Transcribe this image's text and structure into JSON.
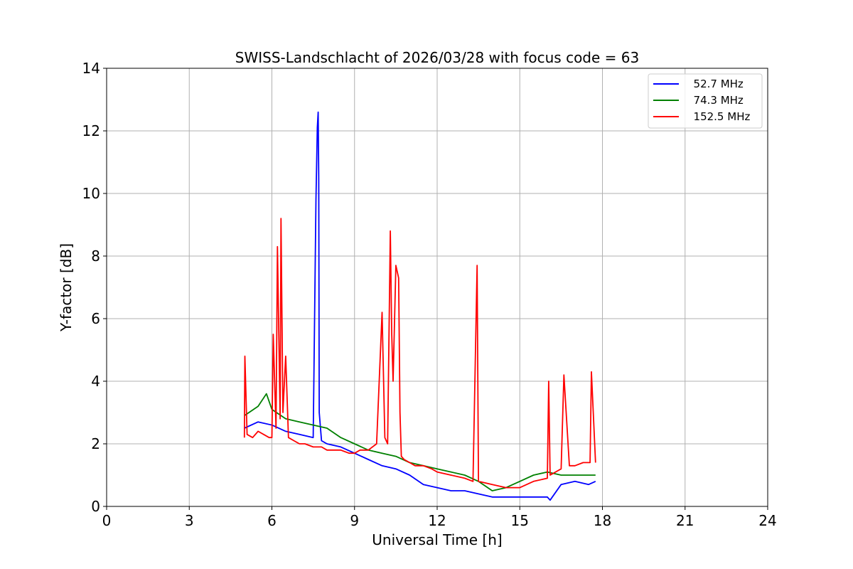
{
  "chart_data": {
    "type": "line",
    "title": "SWISS-Landschlacht of 2026/03/28 with focus code = 63",
    "xlabel": "Universal Time [h]",
    "ylabel": "Y-factor [dB]",
    "xlim": [
      0,
      24
    ],
    "ylim": [
      0,
      14
    ],
    "xticks": [
      0,
      3,
      6,
      9,
      12,
      15,
      18,
      21,
      24
    ],
    "yticks": [
      0,
      2,
      4,
      6,
      8,
      10,
      12,
      14
    ],
    "grid": true,
    "legend_position": "top-right",
    "series": [
      {
        "name": "52.7 MHz",
        "label": "  52.7 MHz",
        "color": "#0000ff",
        "x": [
          5.0,
          5.5,
          6.0,
          6.5,
          7.0,
          7.5,
          7.6,
          7.65,
          7.68,
          7.7,
          7.72,
          7.8,
          8.0,
          8.5,
          9.0,
          9.5,
          10.0,
          10.5,
          11.0,
          11.5,
          12.0,
          12.5,
          13.0,
          13.5,
          14.0,
          14.5,
          15.0,
          15.5,
          16.0,
          16.1,
          16.5,
          17.0,
          17.5,
          17.75
        ],
        "y": [
          2.5,
          2.7,
          2.6,
          2.4,
          2.3,
          2.2,
          9.8,
          12.1,
          12.6,
          10.5,
          3.0,
          2.1,
          2.0,
          1.9,
          1.7,
          1.5,
          1.3,
          1.2,
          1.0,
          0.7,
          0.6,
          0.5,
          0.5,
          0.4,
          0.3,
          0.3,
          0.3,
          0.3,
          0.3,
          0.2,
          0.7,
          0.8,
          0.7,
          0.8
        ]
      },
      {
        "name": "74.3 MHz",
        "label": "  74.3 MHz",
        "color": "#008000",
        "x": [
          5.0,
          5.5,
          5.8,
          6.0,
          6.5,
          7.0,
          7.5,
          8.0,
          8.5,
          9.0,
          9.5,
          10.0,
          10.5,
          11.0,
          11.5,
          12.0,
          12.5,
          13.0,
          13.5,
          14.0,
          14.5,
          15.0,
          15.5,
          16.0,
          16.5,
          17.0,
          17.5,
          17.75
        ],
        "y": [
          2.9,
          3.2,
          3.6,
          3.1,
          2.8,
          2.7,
          2.6,
          2.5,
          2.2,
          2.0,
          1.8,
          1.7,
          1.6,
          1.4,
          1.3,
          1.2,
          1.1,
          1.0,
          0.8,
          0.5,
          0.6,
          0.8,
          1.0,
          1.1,
          1.0,
          1.0,
          1.0,
          1.0
        ]
      },
      {
        "name": "152.5 MHz",
        "label": "  152.5 MHz",
        "color": "#ff0000",
        "x": [
          5.0,
          5.02,
          5.1,
          5.3,
          5.5,
          5.7,
          5.9,
          6.0,
          6.05,
          6.15,
          6.2,
          6.3,
          6.33,
          6.4,
          6.5,
          6.6,
          6.8,
          7.0,
          7.2,
          7.5,
          7.8,
          8.0,
          8.2,
          8.5,
          8.8,
          9.0,
          9.2,
          9.5,
          9.8,
          10.0,
          10.1,
          10.2,
          10.3,
          10.35,
          10.4,
          10.5,
          10.6,
          10.65,
          10.7,
          10.8,
          11.0,
          11.2,
          11.5,
          11.8,
          12.0,
          12.5,
          13.0,
          13.3,
          13.45,
          13.5,
          14.0,
          14.5,
          15.0,
          15.5,
          16.0,
          16.05,
          16.1,
          16.5,
          16.6,
          16.8,
          17.0,
          17.3,
          17.55,
          17.6,
          17.75
        ],
        "y": [
          2.2,
          4.8,
          2.3,
          2.2,
          2.4,
          2.3,
          2.2,
          2.2,
          5.5,
          2.5,
          8.3,
          2.8,
          9.2,
          3.0,
          4.8,
          2.2,
          2.1,
          2.0,
          2.0,
          1.9,
          1.9,
          1.8,
          1.8,
          1.8,
          1.7,
          1.7,
          1.8,
          1.8,
          2.0,
          6.2,
          2.2,
          2.0,
          8.8,
          5.5,
          4.0,
          7.7,
          7.3,
          3.0,
          1.6,
          1.5,
          1.4,
          1.3,
          1.3,
          1.2,
          1.1,
          1.0,
          0.9,
          0.8,
          7.7,
          0.8,
          0.7,
          0.6,
          0.6,
          0.8,
          0.9,
          4.0,
          1.0,
          1.2,
          4.2,
          1.3,
          1.3,
          1.4,
          1.4,
          4.3,
          1.4
        ]
      }
    ]
  }
}
